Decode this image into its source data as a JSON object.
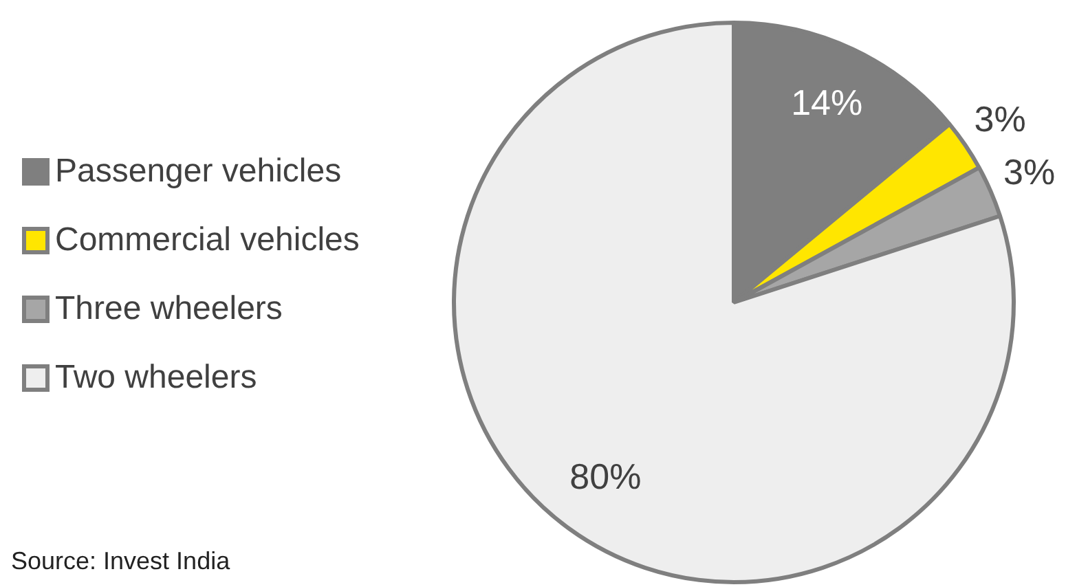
{
  "chart_data": {
    "type": "pie",
    "categories": [
      "Passenger vehicles",
      "Commercial vehicles",
      "Three wheelers",
      "Two wheelers"
    ],
    "values": [
      14,
      3,
      3,
      80
    ],
    "colors": [
      "#7f7f7f",
      "#ffe600",
      "#a6a6a6",
      "#eeeeee"
    ],
    "value_labels": [
      "14%",
      "3%",
      "3%",
      "80%"
    ],
    "legend": "left",
    "annotations": [
      "Source: Invest India"
    ]
  }
}
